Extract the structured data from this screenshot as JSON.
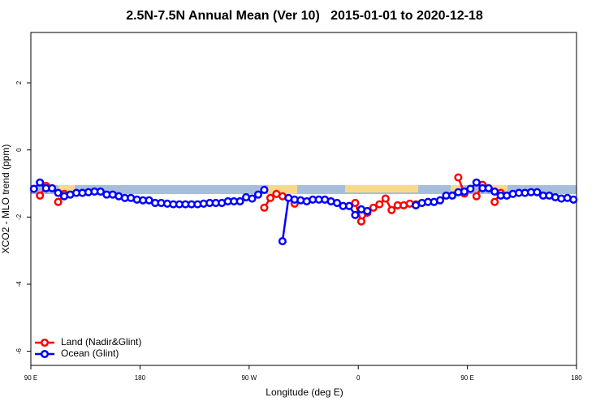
{
  "chart_data": {
    "type": "line",
    "title": "2.5N-7.5N Annual Mean (Ver 10)   2015-01-01 to 2020-12-18",
    "xlabel": "Longitude (deg E)",
    "ylabel": "XCO2 - MLO trend (ppm)",
    "xlim": [
      -270,
      180
    ],
    "xticks": [
      {
        "value": -270,
        "label": "90 E"
      },
      {
        "value": -180,
        "label": "180"
      },
      {
        "value": -90,
        "label": "90 W"
      },
      0,
      {
        "value": 90,
        "label": "90 E"
      },
      {
        "value": 180,
        "label": "180"
      }
    ],
    "ylim": [
      -6.42,
      3.5
    ],
    "yticks": [
      2,
      0,
      -2,
      -4,
      -6
    ],
    "legend": "bottom-left",
    "series": [
      {
        "name": "Land (Nadir&Glint)",
        "color": "#ff0000",
        "x": [
          -262.5,
          -257.5,
          -252.5,
          -247.5,
          -242.5,
          -237.5,
          -77.5,
          -72.5,
          -67.5,
          -62.5,
          -57.5,
          -52.5,
          -47.5,
          -2.5,
          2.5,
          7.5,
          12.5,
          17.5,
          22.5,
          27.5,
          32.5,
          37.5,
          42.5,
          47.5,
          52.5,
          82.5,
          87.5,
          92.5,
          97.5,
          102.5,
          107.5,
          112.5,
          117.5
        ],
        "values": [
          -1.36,
          -1.07,
          null,
          -1.55,
          -1.31,
          null,
          -1.72,
          -1.43,
          -1.31,
          -1.38,
          null,
          -1.6,
          null,
          -1.58,
          -2.13,
          -1.87,
          -1.72,
          -1.62,
          -1.45,
          -1.79,
          -1.65,
          -1.65,
          -1.6,
          -1.62,
          null,
          -0.82,
          -1.3,
          null,
          -1.38,
          -1.04,
          null,
          -1.55,
          -1.28
        ]
      },
      {
        "name": "Ocean (Glint)",
        "color": "#0000ff",
        "x": [
          -267.5,
          -262.5,
          -257.5,
          -252.5,
          -247.5,
          -242.5,
          -237.5,
          -232.5,
          -227.5,
          -222.5,
          -217.5,
          -212.5,
          -207.5,
          -202.5,
          -197.5,
          -192.5,
          -187.5,
          -182.5,
          -177.5,
          -172.5,
          -167.5,
          -162.5,
          -157.5,
          -152.5,
          -147.5,
          -142.5,
          -137.5,
          -132.5,
          -127.5,
          -122.5,
          -117.5,
          -112.5,
          -107.5,
          -102.5,
          -97.5,
          -92.5,
          -87.5,
          -82.5,
          -77.5,
          -72.5,
          -62.5,
          -57.5,
          -52.5,
          -47.5,
          -42.5,
          -37.5,
          -32.5,
          -27.5,
          -22.5,
          -17.5,
          -12.5,
          -7.5,
          -2.5,
          2.5,
          7.5,
          12.5,
          47.5,
          52.5,
          57.5,
          62.5,
          67.5,
          72.5,
          77.5,
          82.5,
          87.5,
          92.5,
          97.5,
          102.5,
          107.5,
          112.5,
          117.5,
          122.5,
          127.5,
          132.5,
          137.5,
          142.5,
          147.5,
          152.5,
          157.5,
          162.5,
          167.5,
          172.5,
          177.5
        ],
        "values": [
          -1.16,
          -0.97,
          -1.14,
          -1.14,
          -1.28,
          -1.38,
          -1.33,
          -1.28,
          -1.28,
          -1.26,
          -1.24,
          -1.24,
          -1.33,
          -1.33,
          -1.38,
          -1.43,
          -1.43,
          -1.48,
          -1.5,
          -1.5,
          -1.58,
          -1.58,
          -1.6,
          -1.62,
          -1.62,
          -1.62,
          -1.62,
          -1.62,
          -1.6,
          -1.58,
          -1.58,
          -1.58,
          -1.53,
          -1.53,
          -1.53,
          -1.41,
          -1.45,
          -1.33,
          -1.19,
          null,
          -2.72,
          -1.43,
          -1.48,
          -1.5,
          -1.53,
          -1.48,
          -1.48,
          -1.48,
          -1.53,
          -1.58,
          -1.67,
          -1.67,
          -1.94,
          -1.77,
          -1.82,
          null,
          -1.65,
          -1.58,
          -1.55,
          -1.55,
          -1.5,
          -1.36,
          -1.36,
          -1.26,
          -1.24,
          -1.16,
          -0.97,
          -1.14,
          -1.14,
          -1.24,
          -1.36,
          -1.36,
          -1.31,
          -1.28,
          -1.28,
          -1.26,
          -1.26,
          -1.36,
          -1.36,
          -1.41,
          -1.45,
          -1.43,
          -1.48
        ]
      }
    ]
  }
}
